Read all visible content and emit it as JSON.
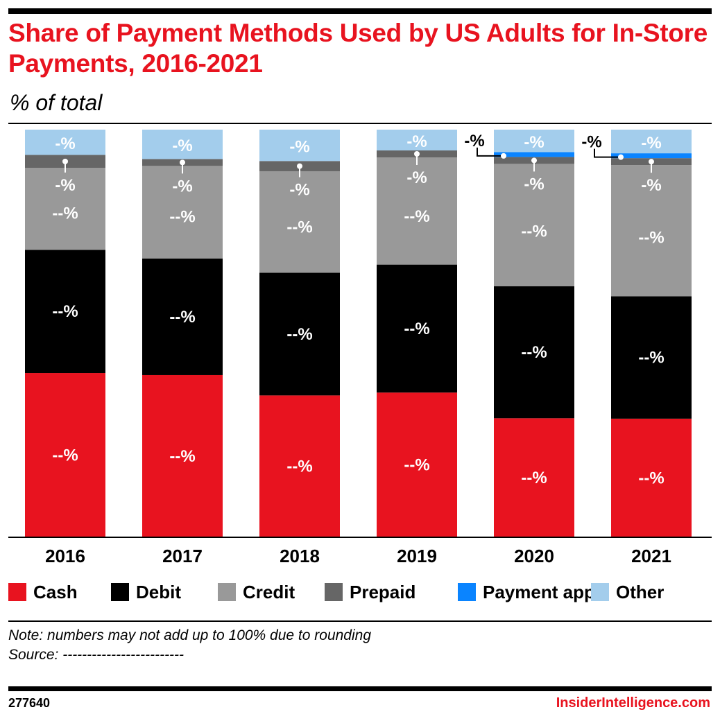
{
  "title": "Share of Payment Methods Used by US Adults for In-Store Payments, 2016-2021",
  "subtitle": "% of total",
  "note": "Note: numbers may not add up to 100% due to rounding",
  "source": "Source: -------------------------",
  "chart_id": "277640",
  "brand": "InsiderIntelligence.com",
  "chart_data": {
    "type": "bar",
    "stacked": true,
    "orientation": "vertical",
    "ylim": [
      0,
      100
    ],
    "grid": false,
    "legend_position": "bottom",
    "categories": [
      "2016",
      "2017",
      "2018",
      "2019",
      "2020",
      "2021"
    ],
    "series": [
      {
        "name": "Cash",
        "color": "#e8131f",
        "values": [
          40.3,
          39.8,
          34.8,
          35.5,
          29.2,
          29.1
        ],
        "labels": [
          "--%",
          "--%",
          "--%",
          "--%",
          "--%",
          "--%"
        ]
      },
      {
        "name": "Debit",
        "color": "#000000",
        "values": [
          30.2,
          28.6,
          30.1,
          31.4,
          32.4,
          30.0
        ],
        "labels": [
          "--%",
          "--%",
          "--%",
          "--%",
          "--%",
          "--%"
        ]
      },
      {
        "name": "Credit",
        "color": "#999999",
        "values": [
          20.1,
          22.7,
          24.9,
          26.3,
          30.0,
          32.2
        ],
        "labels": [
          "--%",
          "--%",
          "--%",
          "--%",
          "--%",
          "--%"
        ]
      },
      {
        "name": "Prepaid",
        "color": "#666666",
        "values": [
          3.2,
          1.7,
          2.5,
          1.7,
          1.7,
          1.7
        ],
        "labels": [
          "-%",
          "-%",
          "-%",
          "-%",
          "-%",
          "-%"
        ]
      },
      {
        "name": "Payment app",
        "color": "#0a84ff",
        "values": [
          0,
          0,
          0,
          0,
          1.2,
          1.2
        ],
        "labels": [
          "",
          "",
          "",
          "",
          "-%",
          "-%"
        ]
      },
      {
        "name": "Other",
        "color": "#a3cdec",
        "values": [
          6.2,
          7.2,
          7.7,
          5.1,
          5.5,
          5.8
        ],
        "labels": [
          "-%",
          "-%",
          "-%",
          "-%",
          "-%",
          "-%"
        ]
      }
    ]
  }
}
